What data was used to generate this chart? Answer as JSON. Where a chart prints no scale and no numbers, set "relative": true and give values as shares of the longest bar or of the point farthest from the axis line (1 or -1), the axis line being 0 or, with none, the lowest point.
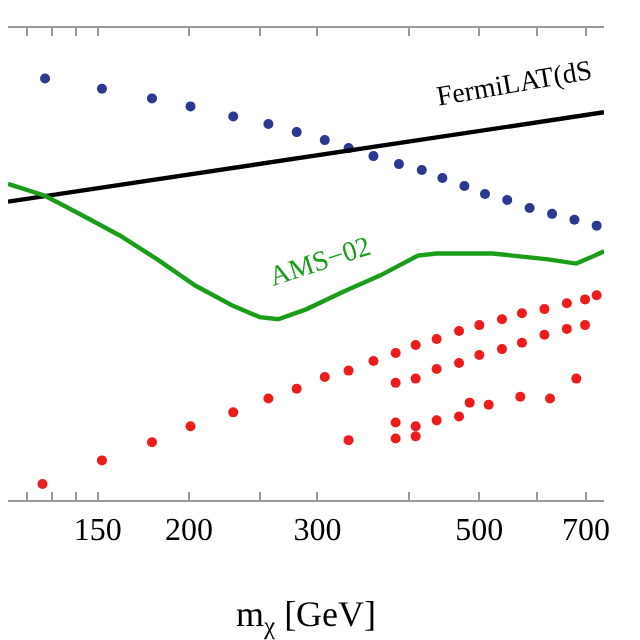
{
  "chart_data": {
    "type": "scatter",
    "relative": true,
    "log": "x",
    "xlabel": "m$_{χ}$ [GeV]",
    "xlim": [
      113,
      741
    ],
    "xticks": [
      {
        "value": 120,
        "label": null
      },
      {
        "value": 130,
        "label": null
      },
      {
        "value": 140,
        "label": null
      },
      150,
      200,
      {
        "value": 250,
        "label": null
      },
      300,
      {
        "value": 400,
        "label": null
      },
      500,
      {
        "value": 600,
        "label": null
      },
      700
    ],
    "grid": false,
    "legend": false,
    "marker": "circle",
    "series": [
      {
        "type": "scatter",
        "color": "#2b3990",
        "x": [
          127,
          152,
          178,
          201,
          230,
          257,
          281,
          307,
          331,
          358,
          388,
          417,
          445,
          477,
          509,
          546,
          586,
          629,
          675,
          724
        ],
        "values": [
          1,
          0.976,
          0.953,
          0.934,
          0.91,
          0.892,
          0.873,
          0.854,
          0.835,
          0.816,
          0.797,
          0.783,
          0.764,
          0.745,
          0.726,
          0.712,
          0.693,
          0.679,
          0.665,
          0.651
        ]
      },
      {
        "type": "scatter",
        "color": "#ee1c1c",
        "x": [
          126,
          152,
          178,
          201,
          230,
          257,
          281,
          307,
          331,
          358,
          384,
          409,
          437,
          469,
          500,
          537,
          572,
          614,
          659,
          698,
          724,
          384,
          409,
          437,
          469,
          500,
          537,
          572,
          614,
          659,
          698,
          331,
          384,
          384,
          409,
          409,
          437,
          469,
          485,
          515,
          569,
          625,
          679
        ],
        "values": [
          0.038,
          0.094,
          0.137,
          0.175,
          0.208,
          0.241,
          0.264,
          0.292,
          0.307,
          0.33,
          0.349,
          0.368,
          0.382,
          0.401,
          0.415,
          0.429,
          0.443,
          0.453,
          0.467,
          0.476,
          0.486,
          0.278,
          0.288,
          0.311,
          0.325,
          0.344,
          0.358,
          0.373,
          0.392,
          0.406,
          0.415,
          0.142,
          0.184,
          0.146,
          0.175,
          0.151,
          0.189,
          0.198,
          0.231,
          0.226,
          0.245,
          0.241,
          0.288
        ]
      },
      {
        "type": "line",
        "name": "FermiLAT(dS",
        "color": "#000000",
        "marker": "none",
        "x": [
          113,
          741
        ],
        "values": [
          0.708,
          0.92
        ]
      },
      {
        "type": "line",
        "name": "AMS−02",
        "color": "#1a9e1a",
        "marker": "none",
        "x": [
          113,
          127,
          143,
          161,
          181,
          204,
          229,
          250,
          265,
          290,
          326,
          366,
          412,
          437,
          521,
          621,
          679,
          720,
          741
        ],
        "values": [
          0.75,
          0.722,
          0.675,
          0.627,
          0.571,
          0.509,
          0.462,
          0.434,
          0.429,
          0.453,
          0.495,
          0.533,
          0.58,
          0.585,
          0.585,
          0.571,
          0.561,
          0.58,
          0.59
        ]
      }
    ]
  }
}
